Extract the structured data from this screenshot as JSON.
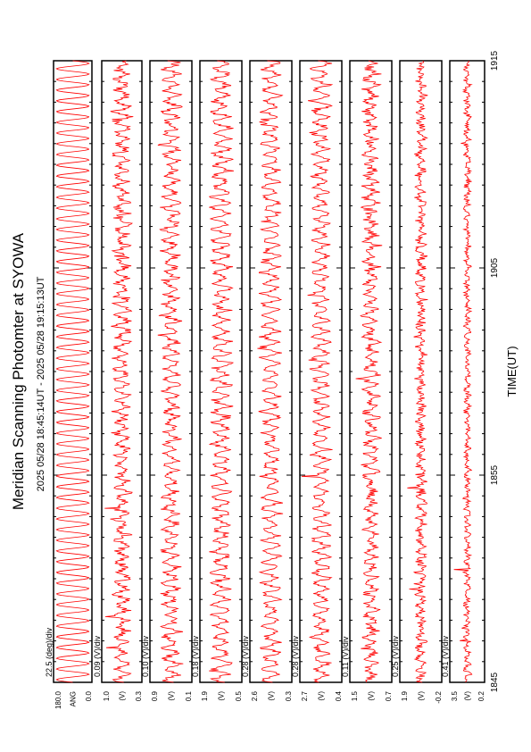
{
  "header": {
    "title": "Meridian Scanning Photomter at SYOWA",
    "time_range": "2025 05/28 18:45:14UT - 2025 05/28 19:15:13UT"
  },
  "chart_data": {
    "type": "line",
    "orientation": "rotated-90-ccw",
    "xlabel": "TIME(UT)",
    "x_ticks": [
      "1845",
      "1855",
      "1905",
      "1915"
    ],
    "x_range": [
      "18:45:14",
      "19:15:13"
    ],
    "line_color": "#ff0000",
    "panels": [
      {
        "name": "ANG",
        "div_label": "22.5 (deg)/div",
        "y_top": "180.0",
        "y_bottom": "0.0",
        "y_unit": "ANG",
        "amplitude": 0.85,
        "noise": 0.0
      },
      {
        "name": "panel-2",
        "div_label": "0.09 (V)/div",
        "y_top": "1.0",
        "y_bottom": "0.3",
        "y_unit": "(V)",
        "amplitude": 0.35,
        "noise": 0.25
      },
      {
        "name": "panel-3",
        "div_label": "0.10 (V)/div",
        "y_top": "0.9",
        "y_bottom": "0.1",
        "y_unit": "(V)",
        "amplitude": 0.4,
        "noise": 0.22
      },
      {
        "name": "panel-4",
        "div_label": "0.18 (V)/div",
        "y_top": "1.9",
        "y_bottom": "0.5",
        "y_unit": "(V)",
        "amplitude": 0.45,
        "noise": 0.2
      },
      {
        "name": "panel-5",
        "div_label": "0.28 (V)/div",
        "y_top": "2.6",
        "y_bottom": "0.3",
        "y_unit": "(V)",
        "amplitude": 0.45,
        "noise": 0.18
      },
      {
        "name": "panel-6",
        "div_label": "0.28 (V)/div",
        "y_top": "2.7",
        "y_bottom": "0.4",
        "y_unit": "(V)",
        "amplitude": 0.42,
        "noise": 0.18
      },
      {
        "name": "panel-7",
        "div_label": "0.11 (V)/div",
        "y_top": "1.5",
        "y_bottom": "0.7",
        "y_unit": "(V)",
        "amplitude": 0.3,
        "noise": 0.25
      },
      {
        "name": "panel-8",
        "div_label": "0.25 (V)/div",
        "y_top": "1.9",
        "y_bottom": "-0.2",
        "y_unit": "(V)",
        "amplitude": 0.15,
        "noise": 0.2
      },
      {
        "name": "panel-9",
        "div_label": "0.41 (V)/div",
        "y_top": "3.5",
        "y_bottom": "0.2",
        "y_unit": "(V)",
        "amplitude": 0.12,
        "noise": 0.15
      }
    ]
  }
}
